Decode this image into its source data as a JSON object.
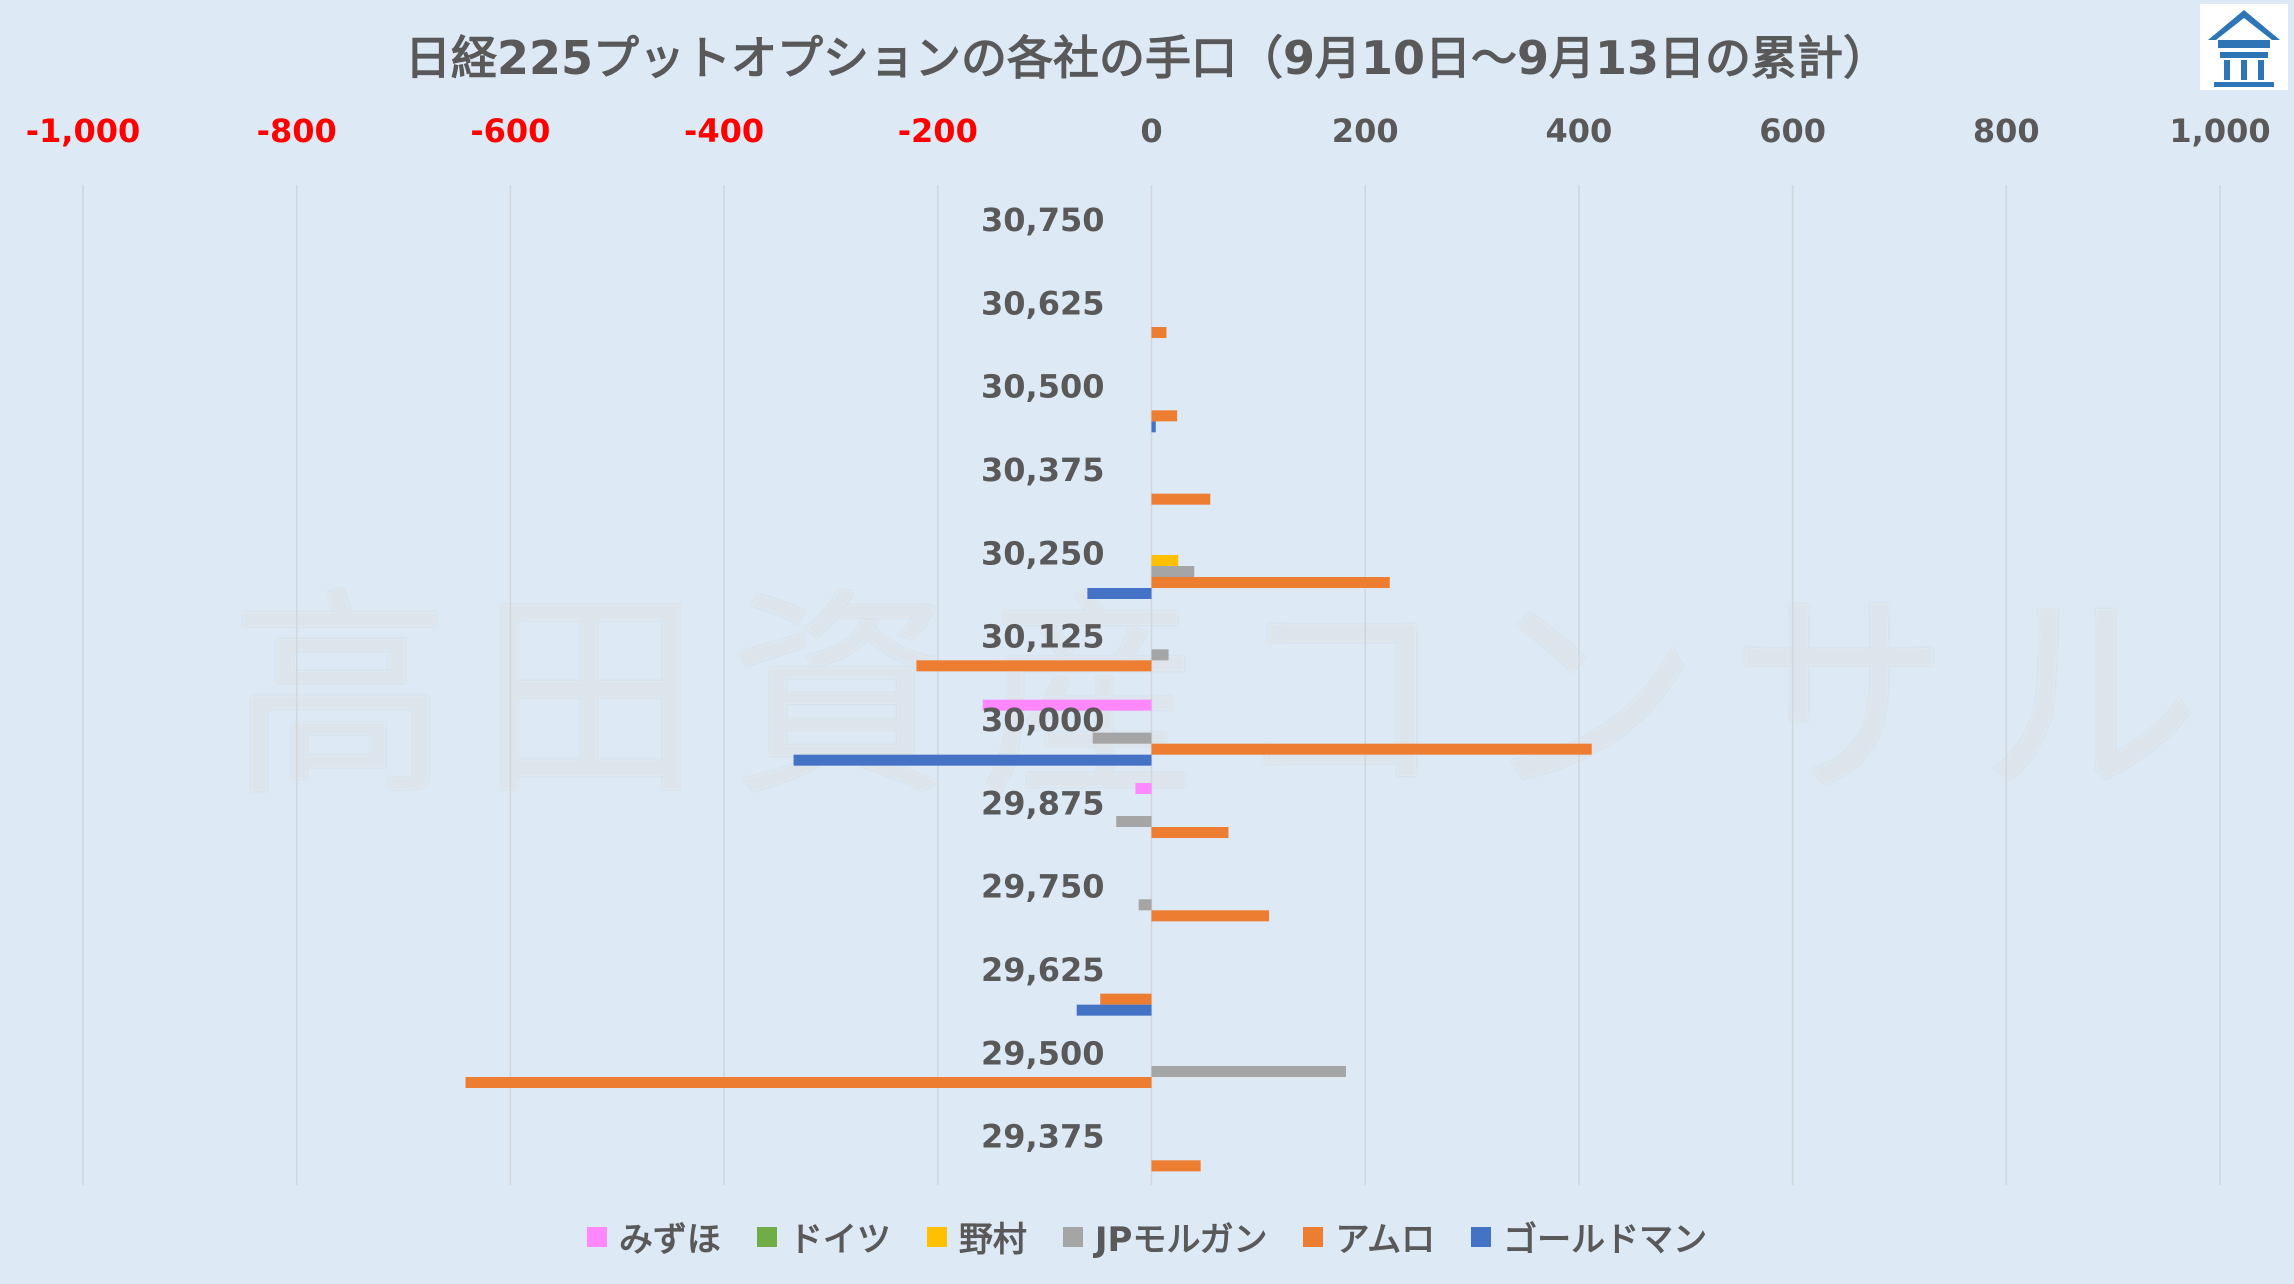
{
  "chart_data": {
    "type": "bar",
    "orientation": "horizontal",
    "title": "日経225プットオプションの各社の手口（9月10日～9月13日の累計）",
    "xlim": [
      -1000,
      1000
    ],
    "x_ticks": [
      {
        "value": -1000,
        "label": "-1,000"
      },
      {
        "value": -800,
        "label": "-800"
      },
      {
        "value": -600,
        "label": "-600"
      },
      {
        "value": -400,
        "label": "-400"
      },
      {
        "value": -200,
        "label": "-200"
      },
      {
        "value": 0,
        "label": "0"
      },
      {
        "value": 200,
        "label": "200"
      },
      {
        "value": 400,
        "label": "400"
      },
      {
        "value": 600,
        "label": "600"
      },
      {
        "value": 800,
        "label": "800"
      },
      {
        "value": 1000,
        "label": "1,000"
      }
    ],
    "negative_tick_color": "#ff0000",
    "positive_tick_color": "#595959",
    "grid": "vertical",
    "legend_position": "bottom",
    "categories": [
      "30,750",
      "30,625",
      "30,500",
      "30,375",
      "30,250",
      "30,125",
      "30,000",
      "29,875",
      "29,750",
      "29,625",
      "29,500",
      "29,375"
    ],
    "series": [
      {
        "name": "みずほ",
        "color": "#ff88ff",
        "values": [
          0,
          0,
          0,
          0,
          0,
          0,
          -158,
          -15,
          0,
          0,
          0,
          0
        ]
      },
      {
        "name": "ドイツ",
        "color": "#70ad47",
        "values": [
          0,
          0,
          0,
          0,
          0,
          0,
          0,
          0,
          0,
          0,
          0,
          0
        ]
      },
      {
        "name": "野村",
        "color": "#ffc000",
        "values": [
          0,
          0,
          0,
          0,
          25,
          0,
          0,
          0,
          0,
          0,
          0,
          0
        ]
      },
      {
        "name": "JPモルガン",
        "color": "#a5a5a5",
        "values": [
          0,
          0,
          0,
          0,
          40,
          16,
          -55,
          -33,
          -12,
          0,
          182,
          0
        ]
      },
      {
        "name": "アムロ",
        "color": "#ed7d31",
        "values": [
          0,
          14,
          24,
          55,
          223,
          -220,
          412,
          72,
          110,
          -48,
          -642,
          46
        ]
      },
      {
        "name": "ゴールドマン",
        "color": "#4472c4",
        "values": [
          0,
          0,
          4,
          0,
          -60,
          0,
          -335,
          0,
          0,
          -70,
          0,
          0
        ]
      }
    ]
  },
  "watermark": "高田資産コンサル",
  "logo": {
    "icon": "house-logo-icon",
    "color": "#2e75b6"
  }
}
